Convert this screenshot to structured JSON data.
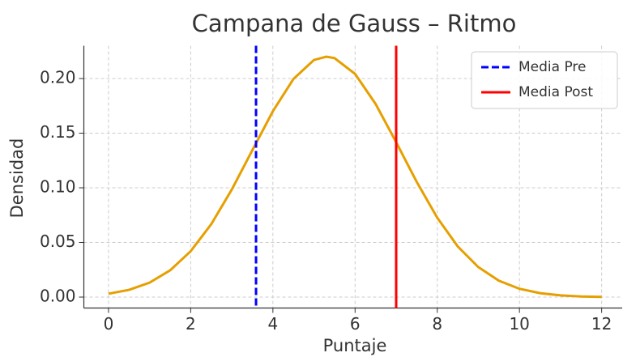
{
  "chart_data": {
    "type": "line",
    "title": "Campana de Gauss – Ritmo",
    "xlabel": "Puntaje",
    "ylabel": "Densidad",
    "x": [
      0,
      0.5,
      1,
      1.5,
      2,
      2.5,
      3,
      3.5,
      4,
      4.5,
      5,
      5.3,
      5.5,
      6,
      6.5,
      7,
      7.5,
      8,
      8.5,
      9,
      9.5,
      10,
      10.5,
      11,
      11.5,
      12
    ],
    "series": [
      {
        "name": null,
        "color": "#e69f00",
        "values": [
          0.0031,
          0.0066,
          0.0132,
          0.0245,
          0.042,
          0.0667,
          0.0984,
          0.1344,
          0.1701,
          0.1996,
          0.217,
          0.22,
          0.2187,
          0.2042,
          0.1767,
          0.1417,
          0.1054,
          0.0726,
          0.0463,
          0.0274,
          0.015,
          0.0076,
          0.0036,
          0.0016,
          0.0006,
          0.0002
        ]
      }
    ],
    "vlines": [
      {
        "name": "Media Pre",
        "x": 3.59,
        "color": "#0000ff",
        "style": "dashed"
      },
      {
        "name": "Media Post",
        "x": 7.0,
        "color": "#ff0000",
        "style": "solid"
      }
    ],
    "xlim": [
      -0.6,
      12.5
    ],
    "ylim": [
      -0.01,
      0.23
    ],
    "xticks": [
      0,
      2,
      4,
      6,
      8,
      10,
      12
    ],
    "yticks": [
      {
        "value": 0,
        "label": "0.00"
      },
      0.05,
      {
        "value": 0.1,
        "label": "0.10"
      },
      0.15,
      {
        "value": 0.2,
        "label": "0.20"
      }
    ],
    "grid": true,
    "legend": "upper right"
  }
}
